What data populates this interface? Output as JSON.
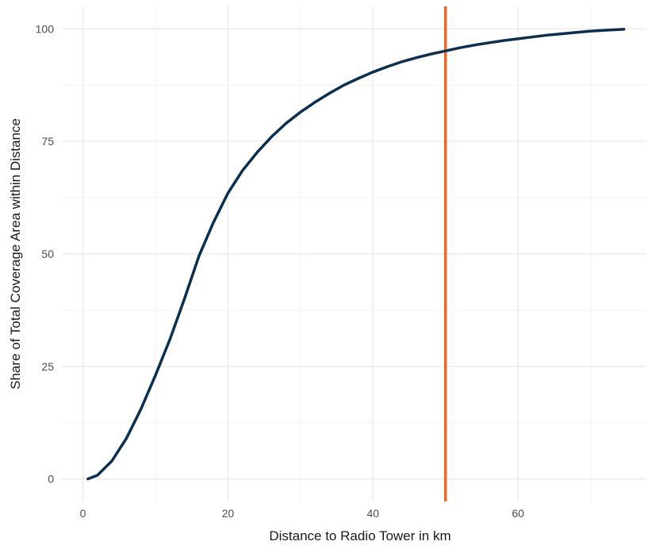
{
  "chart_data": {
    "type": "line",
    "title": "",
    "xlabel": "Distance to Radio Tower in km",
    "ylabel": "Share of Total Coverage Area within Distance",
    "xlim": [
      -2.9,
      77.7
    ],
    "ylim": [
      -5,
      105
    ],
    "x_ticks": [
      0,
      20,
      40,
      60
    ],
    "y_ticks": [
      0,
      25,
      50,
      75,
      100
    ],
    "grid": true,
    "legend": "none",
    "series": [
      {
        "color": "#0b2f4f",
        "x": [
          0.7,
          2,
          4,
          6,
          8,
          10,
          12,
          14,
          16,
          18,
          20,
          22,
          24,
          26,
          28,
          30,
          32,
          34,
          36,
          38,
          40,
          42,
          44,
          46,
          48,
          50,
          52,
          54,
          56,
          58,
          60,
          62,
          64,
          66,
          68,
          70,
          72,
          74.6
        ],
        "y": [
          0,
          0.8,
          4,
          9,
          15.5,
          23,
          31,
          40,
          49.5,
          57,
          63.5,
          68.5,
          72.5,
          76,
          79,
          81.5,
          83.7,
          85.7,
          87.5,
          89,
          90.4,
          91.6,
          92.7,
          93.6,
          94.4,
          95.1,
          95.8,
          96.4,
          96.9,
          97.4,
          97.8,
          98.2,
          98.6,
          98.9,
          99.2,
          99.5,
          99.7,
          99.9
        ]
      }
    ],
    "annotations": [
      {
        "type": "vline",
        "x": 50,
        "color": "#f26522"
      }
    ]
  }
}
